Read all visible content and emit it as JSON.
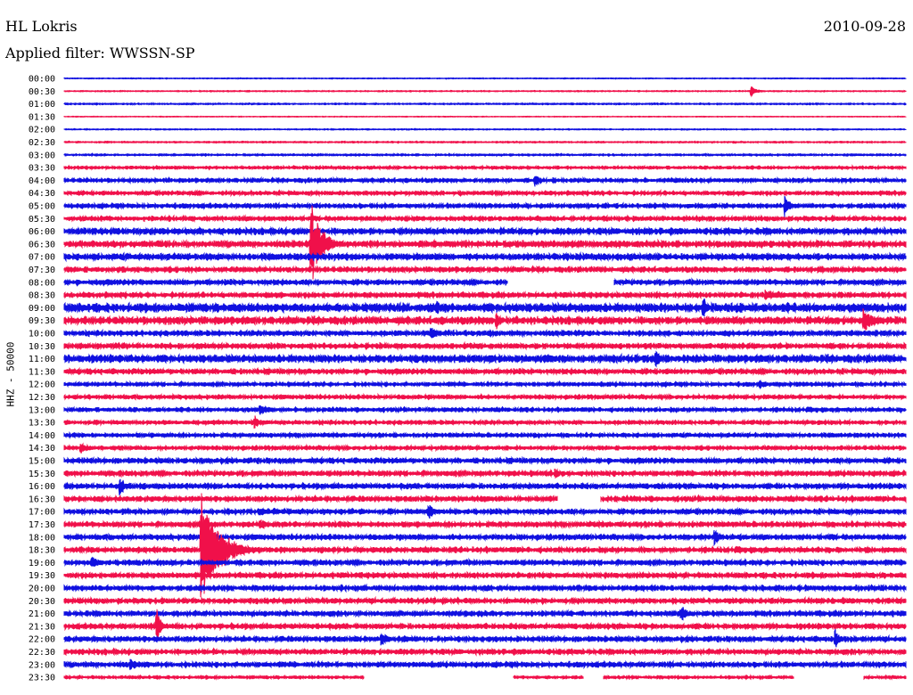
{
  "header": {
    "station": "HL Lokris",
    "date": "2010-09-28",
    "filter": "Applied filter: WWSSN-SP",
    "ylabel": "HHZ - 50000"
  },
  "colors": {
    "blue": "#1010e0",
    "red": "#f0104a"
  },
  "chart_data": {
    "type": "line",
    "title": "HL Lokris",
    "subtitle": "Applied filter: WWSSN-SP",
    "ylabel": "HHZ - 50000",
    "xlabel": "",
    "grid": false,
    "legend": "none",
    "rows": [
      "00:00",
      "00:30",
      "01:00",
      "01:30",
      "02:00",
      "02:30",
      "03:00",
      "03:30",
      "04:00",
      "04:30",
      "05:00",
      "05:30",
      "06:00",
      "06:30",
      "07:00",
      "07:30",
      "08:00",
      "08:30",
      "09:00",
      "09:30",
      "10:00",
      "10:30",
      "11:00",
      "11:30",
      "12:00",
      "12:30",
      "13:00",
      "13:30",
      "14:00",
      "14:30",
      "15:00",
      "15:30",
      "16:00",
      "16:30",
      "17:00",
      "17:30",
      "18:00",
      "18:30",
      "19:00",
      "19:30",
      "20:00",
      "20:30",
      "21:00",
      "21:30",
      "22:00",
      "22:30",
      "23:00",
      "23:30"
    ],
    "series_colors_alternate": [
      "blue",
      "red"
    ],
    "row_noise": [
      0.5,
      0.6,
      0.8,
      0.4,
      0.6,
      0.8,
      1.0,
      1.5,
      2.0,
      2.0,
      2.2,
      2.2,
      3.0,
      3.0,
      3.0,
      2.5,
      2.5,
      2.5,
      4.0,
      3.5,
      2.5,
      2.5,
      3.5,
      2.5,
      2.0,
      2.0,
      2.0,
      2.0,
      2.0,
      2.0,
      2.5,
      2.5,
      2.5,
      2.5,
      2.5,
      2.5,
      2.5,
      2.5,
      2.5,
      2.5,
      2.5,
      2.5,
      2.5,
      2.5,
      2.5,
      2.5,
      2.5,
      1.5
    ],
    "events": [
      {
        "row": "00:30",
        "minute": 24.5,
        "amp": 6,
        "dur": 0.6
      },
      {
        "row": "04:00",
        "minute": 16.8,
        "amp": 9,
        "dur": 0.5
      },
      {
        "row": "05:00",
        "minute": 25.7,
        "amp": 14,
        "dur": 0.5
      },
      {
        "row": "06:30",
        "minute": 8.8,
        "amp": 50,
        "dur": 1.2
      },
      {
        "row": "08:30",
        "minute": 25.0,
        "amp": 6,
        "dur": 3.0
      },
      {
        "row": "09:00",
        "minute": 13.3,
        "amp": 10,
        "dur": 0.4
      },
      {
        "row": "09:00",
        "minute": 22.8,
        "amp": 14,
        "dur": 0.4
      },
      {
        "row": "09:30",
        "minute": 15.4,
        "amp": 11,
        "dur": 0.6
      },
      {
        "row": "09:30",
        "minute": 28.5,
        "amp": 14,
        "dur": 1.2
      },
      {
        "row": "10:00",
        "minute": 13.1,
        "amp": 8,
        "dur": 0.8
      },
      {
        "row": "11:00",
        "minute": 21.1,
        "amp": 13,
        "dur": 0.5
      },
      {
        "row": "12:00",
        "minute": 24.8,
        "amp": 6,
        "dur": 0.6
      },
      {
        "row": "13:00",
        "minute": 7.0,
        "amp": 7,
        "dur": 0.8
      },
      {
        "row": "13:30",
        "minute": 6.8,
        "amp": 9,
        "dur": 0.4
      },
      {
        "row": "14:30",
        "minute": 0.6,
        "amp": 7,
        "dur": 1.0
      },
      {
        "row": "15:30",
        "minute": 17.5,
        "amp": 8,
        "dur": 0.5
      },
      {
        "row": "16:00",
        "minute": 2.0,
        "amp": 11,
        "dur": 0.6
      },
      {
        "row": "17:00",
        "minute": 13.0,
        "amp": 11,
        "dur": 0.6
      },
      {
        "row": "17:30",
        "minute": 7.0,
        "amp": 7,
        "dur": 0.8
      },
      {
        "row": "18:00",
        "minute": 23.2,
        "amp": 11,
        "dur": 0.5
      },
      {
        "row": "18:30",
        "minute": 4.9,
        "amp": 70,
        "dur": 1.8
      },
      {
        "row": "19:00",
        "minute": 1.0,
        "amp": 7,
        "dur": 1.2
      },
      {
        "row": "21:00",
        "minute": 22.0,
        "amp": 10,
        "dur": 0.8
      },
      {
        "row": "21:30",
        "minute": 3.3,
        "amp": 20,
        "dur": 0.5
      },
      {
        "row": "22:00",
        "minute": 11.3,
        "amp": 10,
        "dur": 0.7
      },
      {
        "row": "22:00",
        "minute": 27.5,
        "amp": 13,
        "dur": 0.4
      },
      {
        "row": "23:00",
        "minute": 2.4,
        "amp": 8,
        "dur": 0.6
      }
    ],
    "gaps": [
      {
        "row": "08:00",
        "from": 15.8,
        "to": 19.6
      },
      {
        "row": "16:30",
        "from": 17.6,
        "to": 19.1
      },
      {
        "row": "23:30",
        "from": 10.7,
        "to": 16.0
      },
      {
        "row": "23:30",
        "from": 18.5,
        "to": 19.2
      },
      {
        "row": "23:30",
        "from": 26.0,
        "to": 28.5
      }
    ]
  }
}
